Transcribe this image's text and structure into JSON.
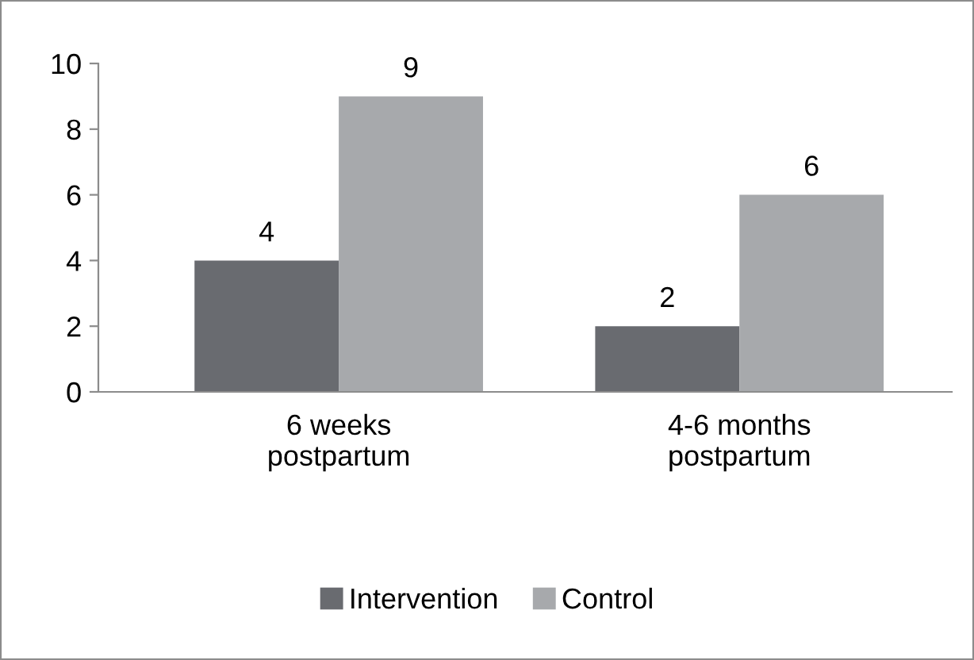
{
  "chart_data": {
    "type": "bar",
    "categories": [
      "6 weeks\npostpartum",
      "4-6 months\npostpartum"
    ],
    "series": [
      {
        "name": "Intervention",
        "color": "#696b70",
        "values": [
          4,
          2
        ]
      },
      {
        "name": "Control",
        "color": "#a7a9ac",
        "values": [
          9,
          6
        ]
      }
    ],
    "ylim": [
      0,
      10
    ],
    "yticks": [
      0,
      2,
      4,
      6,
      8,
      10
    ],
    "data_labels": true,
    "grid": false,
    "legend": "bottom"
  }
}
